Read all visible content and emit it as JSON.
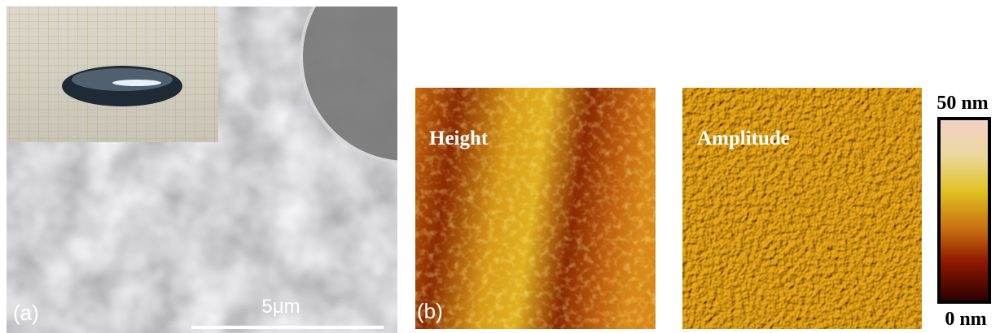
{
  "panel_a": {
    "label": "(a)",
    "scale_bar": "5μm"
  },
  "panel_b": {
    "label": "(b)",
    "height_title": "Height",
    "amplitude_title": "Amplitude",
    "colorbar": {
      "max_label": "50 nm",
      "min_label": "0 nm"
    }
  }
}
